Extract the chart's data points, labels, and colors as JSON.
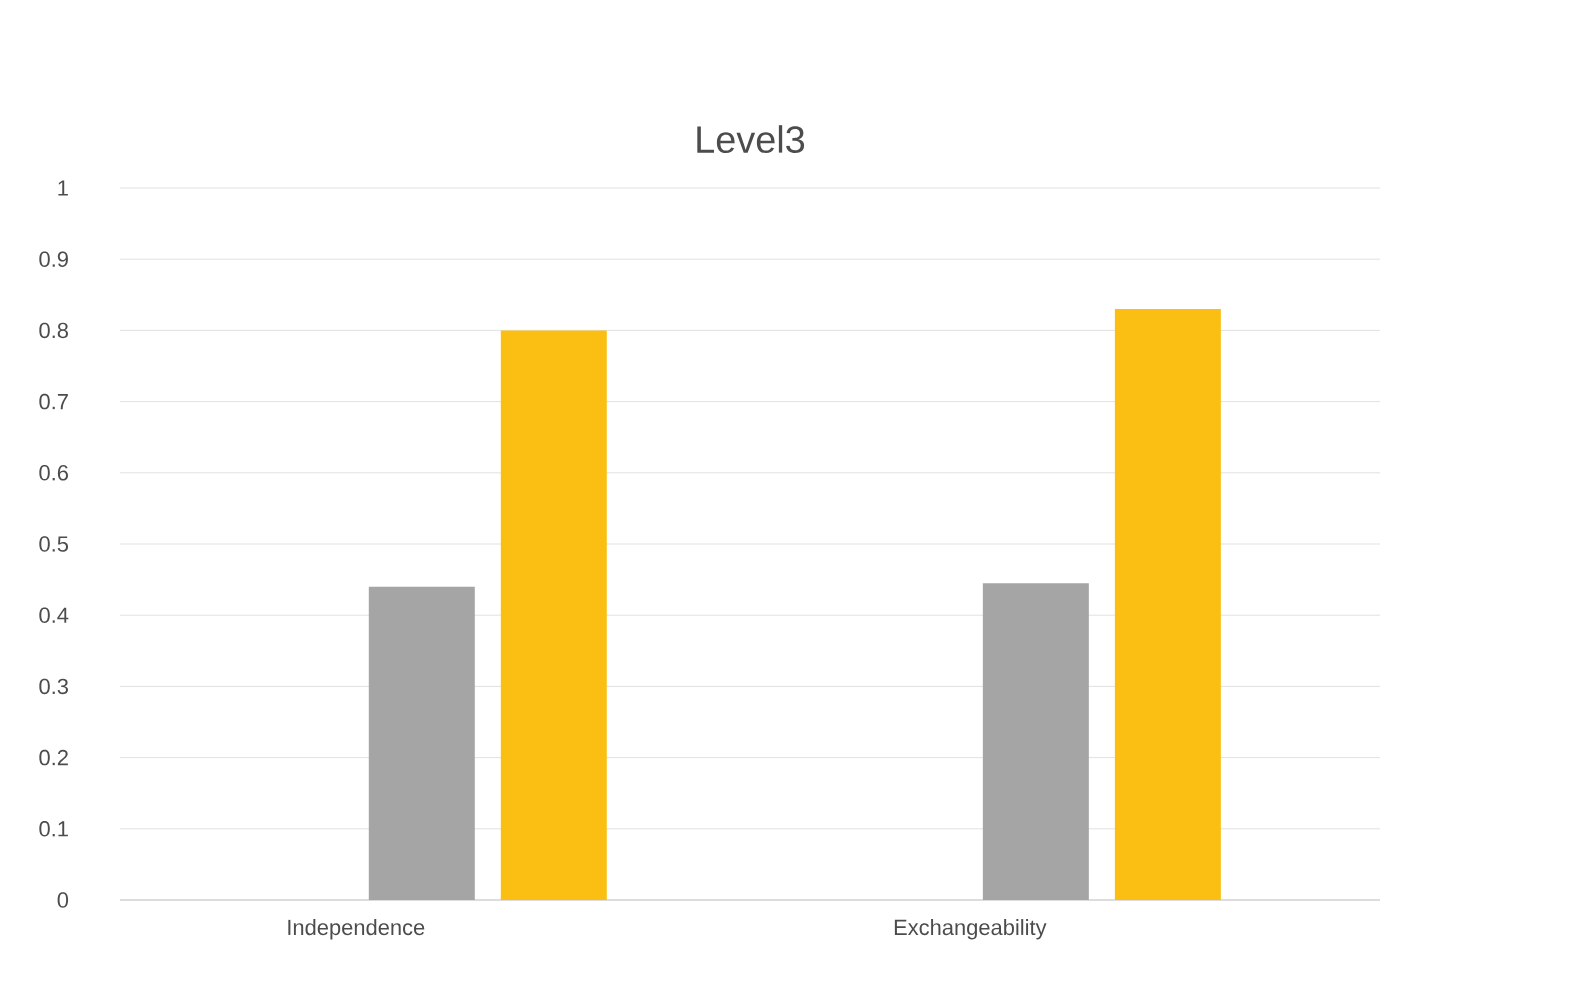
{
  "chart_data": {
    "type": "bar",
    "title": "Level3",
    "categories": [
      "Independence",
      "Exchangeability"
    ],
    "series": [
      {
        "color": "#a5a5a5",
        "values": [
          0.44,
          0.445
        ]
      },
      {
        "color": "#fbbf14",
        "values": [
          0.8,
          0.83
        ]
      }
    ],
    "ylim": [
      0,
      1
    ],
    "yticks": [
      0,
      0.1,
      0.2,
      0.3,
      0.4,
      0.5,
      0.6,
      0.7,
      0.8,
      0.9,
      1
    ],
    "grid": "y"
  }
}
